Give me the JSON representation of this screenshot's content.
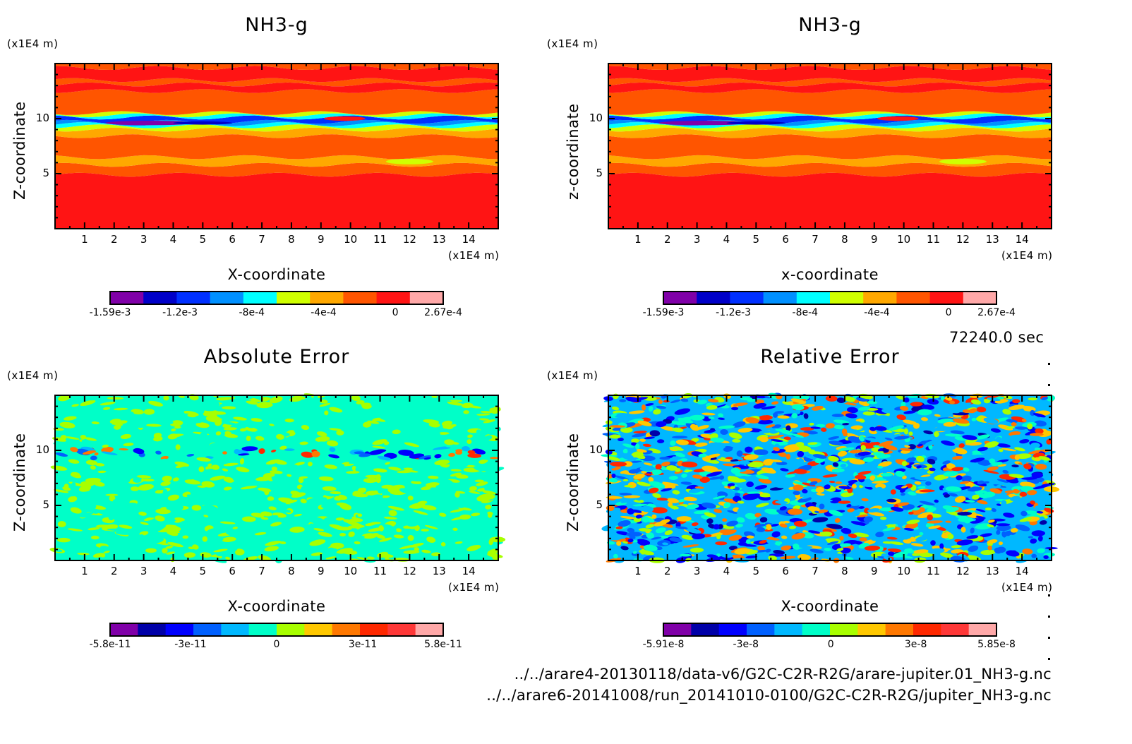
{
  "chart_data": [
    {
      "type": "heatmap",
      "panel": "top-left",
      "title": "NH3-g",
      "xlabel": "X-coordinate",
      "ylabel": "Z-coordinate",
      "x_unit": "(x1E4 m)",
      "y_unit": "(x1E4 m)",
      "xlim": [
        0,
        15
      ],
      "ylim": [
        0,
        15
      ],
      "x_ticks": [
        1,
        2,
        3,
        4,
        5,
        6,
        7,
        8,
        9,
        10,
        11,
        12,
        13,
        14
      ],
      "y_ticks": [
        5,
        10
      ],
      "pattern": "layered",
      "colorbar": {
        "colors": [
          "#8000a8",
          "#0000c8",
          "#0030ff",
          "#0090ff",
          "#00ffff",
          "#d0ff00",
          "#ffa800",
          "#ff5500",
          "#ff1414",
          "#ffa8a8"
        ],
        "tick_labels": [
          "-1.59e-3",
          "-1.2e-3",
          "-8e-4",
          "-4e-4",
          "0",
          "2.67e-4"
        ],
        "tick_values": [
          -0.00159,
          -0.0012,
          -0.0008,
          -0.0004,
          0,
          0.000267
        ],
        "range": [
          -0.00159,
          0.000267
        ]
      },
      "bands": [
        {
          "z_from": 0,
          "z_to": 4.9,
          "level": 8
        },
        {
          "z_from": 4.9,
          "z_to": 5.8,
          "level": 7
        },
        {
          "z_from": 5.8,
          "z_to": 6.5,
          "level": 6
        },
        {
          "z_from": 6.5,
          "z_to": 8.4,
          "level": 7
        },
        {
          "z_from": 8.4,
          "z_to": 9.0,
          "level": 6
        },
        {
          "z_from": 9.0,
          "z_to": 9.3,
          "level": 5
        },
        {
          "z_from": 9.3,
          "z_to": 9.5,
          "level": 4
        },
        {
          "z_from": 9.5,
          "z_to": 9.7,
          "level": 3
        },
        {
          "z_from": 9.7,
          "z_to": 10.1,
          "level": 2
        },
        {
          "z_from": 10.1,
          "z_to": 10.3,
          "level": 4
        },
        {
          "z_from": 10.3,
          "z_to": 10.5,
          "level": 5
        },
        {
          "z_from": 10.5,
          "z_to": 12.5,
          "level": 7
        },
        {
          "z_from": 12.5,
          "z_to": 13.1,
          "level": 8
        },
        {
          "z_from": 13.1,
          "z_to": 13.5,
          "level": 7
        },
        {
          "z_from": 13.5,
          "z_to": 14.6,
          "level": 8
        },
        {
          "z_from": 14.6,
          "z_to": 15,
          "level": 7
        }
      ],
      "features": [
        {
          "x": 3.2,
          "z": 9.6,
          "rx": 1.5,
          "rz": 0.2,
          "level": 0
        },
        {
          "x": 5.0,
          "z": 9.6,
          "rx": 1.0,
          "rz": 0.15,
          "level": 1
        },
        {
          "x": 9.8,
          "z": 10.0,
          "rx": 0.7,
          "rz": 0.2,
          "level": 8
        },
        {
          "x": 12.0,
          "z": 6.1,
          "rx": 0.8,
          "rz": 0.25,
          "level": 5
        }
      ]
    },
    {
      "type": "heatmap",
      "panel": "top-right",
      "title": "NH3-g",
      "xlabel": "x-coordinate",
      "ylabel": "z-coordinate",
      "x_unit": "(x1E4 m)",
      "y_unit": "(x1E4 m)",
      "xlim": [
        0,
        15
      ],
      "ylim": [
        0,
        15
      ],
      "x_ticks": [
        1,
        2,
        3,
        4,
        5,
        6,
        7,
        8,
        9,
        10,
        11,
        12,
        13,
        14
      ],
      "y_ticks": [
        5,
        10
      ],
      "pattern": "layered",
      "colorbar": {
        "colors": [
          "#8000a8",
          "#0000c8",
          "#0030ff",
          "#0090ff",
          "#00ffff",
          "#d0ff00",
          "#ffa800",
          "#ff5500",
          "#ff1414",
          "#ffa8a8"
        ],
        "tick_labels": [
          "-1.59e-3",
          "-1.2e-3",
          "-8e-4",
          "-4e-4",
          "0",
          "2.67e-4"
        ],
        "tick_values": [
          -0.00159,
          -0.0012,
          -0.0008,
          -0.0004,
          0,
          0.000267
        ],
        "range": [
          -0.00159,
          0.000267
        ]
      },
      "bands": [
        {
          "z_from": 0,
          "z_to": 4.9,
          "level": 8
        },
        {
          "z_from": 4.9,
          "z_to": 5.8,
          "level": 7
        },
        {
          "z_from": 5.8,
          "z_to": 6.5,
          "level": 6
        },
        {
          "z_from": 6.5,
          "z_to": 8.4,
          "level": 7
        },
        {
          "z_from": 8.4,
          "z_to": 9.0,
          "level": 6
        },
        {
          "z_from": 9.0,
          "z_to": 9.3,
          "level": 5
        },
        {
          "z_from": 9.3,
          "z_to": 9.5,
          "level": 4
        },
        {
          "z_from": 9.5,
          "z_to": 9.7,
          "level": 3
        },
        {
          "z_from": 9.7,
          "z_to": 10.1,
          "level": 2
        },
        {
          "z_from": 10.1,
          "z_to": 10.3,
          "level": 4
        },
        {
          "z_from": 10.3,
          "z_to": 10.5,
          "level": 5
        },
        {
          "z_from": 10.5,
          "z_to": 12.5,
          "level": 7
        },
        {
          "z_from": 12.5,
          "z_to": 13.1,
          "level": 8
        },
        {
          "z_from": 13.1,
          "z_to": 13.5,
          "level": 7
        },
        {
          "z_from": 13.5,
          "z_to": 14.6,
          "level": 8
        },
        {
          "z_from": 14.6,
          "z_to": 15,
          "level": 7
        }
      ],
      "features": [
        {
          "x": 3.2,
          "z": 9.6,
          "rx": 1.5,
          "rz": 0.2,
          "level": 0
        },
        {
          "x": 5.0,
          "z": 9.6,
          "rx": 1.0,
          "rz": 0.15,
          "level": 1
        },
        {
          "x": 9.8,
          "z": 10.0,
          "rx": 0.7,
          "rz": 0.2,
          "level": 8
        },
        {
          "x": 12.0,
          "z": 6.1,
          "rx": 0.8,
          "rz": 0.25,
          "level": 5
        }
      ]
    },
    {
      "type": "heatmap",
      "panel": "bottom-left",
      "title": "Absolute Error",
      "xlabel": "X-coordinate",
      "ylabel": "Z-coordinate",
      "x_unit": "(x1E4 m)",
      "y_unit": "(x1E4 m)",
      "xlim": [
        0,
        15
      ],
      "ylim": [
        0,
        15
      ],
      "x_ticks": [
        1,
        2,
        3,
        4,
        5,
        6,
        7,
        8,
        9,
        10,
        11,
        12,
        13,
        14
      ],
      "y_ticks": [
        5,
        10
      ],
      "pattern": "noise-abs",
      "colorbar": {
        "colors": [
          "#8000a8",
          "#0000a8",
          "#0000ff",
          "#0060ff",
          "#00b8ff",
          "#00ffc8",
          "#a8ff00",
          "#ffc800",
          "#ff7800",
          "#ff2800",
          "#ff3838",
          "#ffa8a8"
        ],
        "tick_labels": [
          "-5.8e-11",
          "-3e-11",
          "0",
          "3e-11",
          "5.8e-11"
        ],
        "tick_values": [
          -5.8e-11,
          -3e-11,
          0,
          3e-11,
          5.8e-11
        ],
        "range": [
          -5.8e-11,
          5.8e-11
        ]
      }
    },
    {
      "type": "heatmap",
      "panel": "bottom-right",
      "title": "Relative Error",
      "xlabel": "X-coordinate",
      "ylabel": "Z-coordinate",
      "x_unit": "(x1E4 m)",
      "y_unit": "(x1E4 m)",
      "xlim": [
        0,
        15
      ],
      "ylim": [
        0,
        15
      ],
      "x_ticks": [
        1,
        2,
        3,
        4,
        5,
        6,
        7,
        8,
        9,
        10,
        11,
        12,
        13,
        14
      ],
      "y_ticks": [
        5,
        10
      ],
      "pattern": "noise-rel",
      "colorbar": {
        "colors": [
          "#8000a8",
          "#0000a8",
          "#0000ff",
          "#0060ff",
          "#00b8ff",
          "#00ffc8",
          "#a8ff00",
          "#ffc800",
          "#ff7800",
          "#ff2800",
          "#ff3838",
          "#ffa8a8"
        ],
        "tick_labels": [
          "-5.91e-8",
          "-3e-8",
          "0",
          "3e-8",
          "5.85e-8"
        ],
        "tick_values": [
          -5.91e-08,
          -3e-08,
          0,
          3e-08,
          5.85e-08
        ],
        "range": [
          -5.91e-08,
          5.85e-08
        ]
      }
    }
  ],
  "time_label": "72240.0 sec",
  "footer": {
    "file1": "../../arare4-20130118/data-v6/G2C-C2R-R2G/arare-jupiter.01_NH3-g.nc",
    "file2": "../../arare6-20141008/run_20141010-0100/G2C-C2R-R2G/jupiter_NH3-g.nc"
  }
}
